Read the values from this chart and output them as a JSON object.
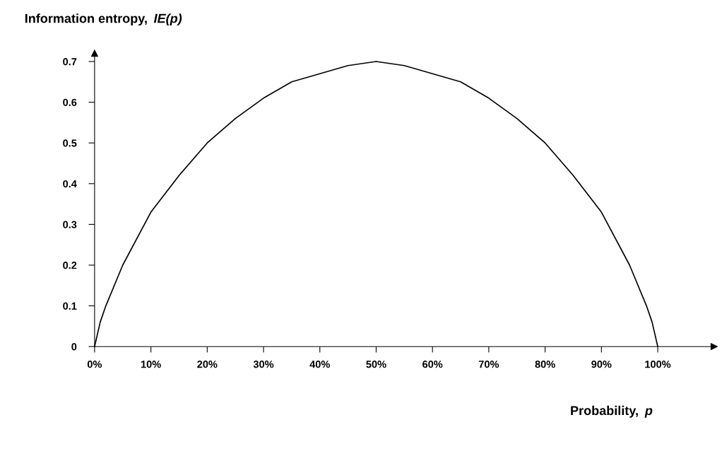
{
  "chart_data": {
    "type": "line",
    "xlabel": "Probability, p",
    "ylabel": "Information entropy, IE(p)",
    "x": [
      0,
      1,
      2,
      5,
      10,
      15,
      20,
      25,
      30,
      35,
      40,
      45,
      50,
      55,
      60,
      65,
      70,
      75,
      80,
      85,
      90,
      95,
      98,
      99,
      100
    ],
    "series": [
      {
        "color": "#000000",
        "values": [
          0,
          0.06,
          0.1,
          0.2,
          0.33,
          0.42,
          0.5,
          0.56,
          0.61,
          0.65,
          0.67,
          0.69,
          0.7,
          0.69,
          0.67,
          0.65,
          0.61,
          0.56,
          0.5,
          0.42,
          0.33,
          0.2,
          0.1,
          0.06,
          0
        ]
      }
    ],
    "xlim": [
      0,
      110
    ],
    "ylim": [
      0,
      0.72
    ],
    "xticks": [
      {
        "value": 0,
        "label": "0%"
      },
      {
        "value": 10,
        "label": "10%"
      },
      {
        "value": 20,
        "label": "20%"
      },
      {
        "value": 30,
        "label": "30%"
      },
      {
        "value": 40,
        "label": "40%"
      },
      {
        "value": 50,
        "label": "50%"
      },
      {
        "value": 60,
        "label": "60%"
      },
      {
        "value": 70,
        "label": "70%"
      },
      {
        "value": 80,
        "label": "80%"
      },
      {
        "value": 90,
        "label": "90%"
      },
      {
        "value": 100,
        "label": "100%"
      }
    ],
    "yticks": [
      0,
      0.1,
      0.2,
      0.3,
      0.4,
      0.5,
      0.6,
      0.7
    ],
    "grid": false,
    "legend": false,
    "marker": "none",
    "line_style": "solid"
  }
}
